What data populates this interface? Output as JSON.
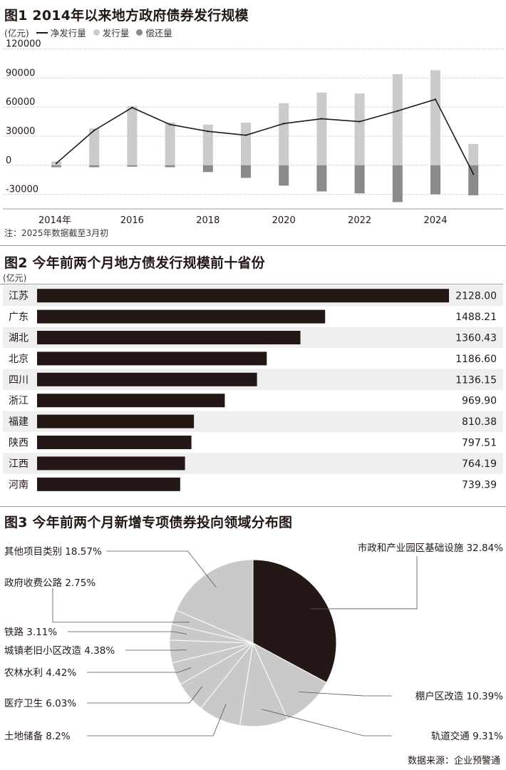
{
  "chart1": {
    "title": "图1 2014年以来地方政府债券发行规模",
    "unit": "(亿元)",
    "legend": {
      "net": "净发行量",
      "issue": "发行量",
      "repay": "偿还量"
    },
    "note": "注：2025年数据截至3月初",
    "colors": {
      "issue": "#cbcbcb",
      "repay": "#8a8a8a",
      "net": "#231815"
    },
    "chart_data": {
      "type": "bar",
      "categories": [
        "2014",
        "2015",
        "2016",
        "2017",
        "2018",
        "2019",
        "2020",
        "2021",
        "2022",
        "2023",
        "2024",
        "2025"
      ],
      "x_tick_labels": [
        "2014年",
        "2016",
        "2018",
        "2020",
        "2022",
        "2024"
      ],
      "y_ticks": [
        "120000",
        "90000",
        "60000",
        "30000",
        "0",
        "-30000"
      ],
      "ylim": [
        -45000,
        130000
      ],
      "grid": true,
      "legend_position": "top-left",
      "series": [
        {
          "name": "发行量",
          "type": "bar",
          "values": [
            4000,
            38000,
            61000,
            44000,
            42000,
            44000,
            64000,
            75000,
            74000,
            94000,
            98000,
            22000
          ]
        },
        {
          "name": "偿还量",
          "type": "bar",
          "values": [
            -2000,
            -2000,
            -1500,
            -2000,
            -7000,
            -13000,
            -21000,
            -27000,
            -29000,
            -38000,
            -30000,
            -31000
          ]
        },
        {
          "name": "净发行量",
          "type": "line",
          "values": [
            2000,
            36000,
            59500,
            42000,
            35000,
            31000,
            43000,
            48000,
            45000,
            56000,
            68000,
            -9000
          ]
        }
      ]
    }
  },
  "chart2": {
    "title": "图2 今年前两个月地方债发行规模前十省份",
    "unit": "(亿元)",
    "colors": {
      "bar": "#231815",
      "stripe": "#efefef"
    },
    "chart_data": {
      "type": "bar",
      "orientation": "horizontal",
      "categories": [
        "江苏",
        "广东",
        "湖北",
        "北京",
        "四川",
        "浙江",
        "福建",
        "陕西",
        "江西",
        "河南"
      ],
      "values": [
        2128.0,
        1488.21,
        1360.43,
        1186.6,
        1136.15,
        969.9,
        810.38,
        797.51,
        764.19,
        739.39
      ],
      "labels": [
        "2128.00",
        "1488.21",
        "1360.43",
        "1186.60",
        "1136.15",
        "969.90",
        "810.38",
        "797.51",
        "764.19",
        "739.39"
      ]
    }
  },
  "chart3": {
    "title": "图3 今年前两个月新增专项债券投向领域分布图",
    "colors": {
      "main": "#231815",
      "rest": "#c9c9c9",
      "edge": "#ffffff",
      "leader": "#555555"
    },
    "chart_data": {
      "type": "pie",
      "start": "12 o'clock",
      "direction": "clockwise",
      "slices": [
        {
          "label": "市政和产业园区基础设施",
          "pct_text": "32.84%",
          "value": 32.84
        },
        {
          "label": "棚户区改造",
          "pct_text": "10.39%",
          "value": 10.39
        },
        {
          "label": "轨道交通",
          "pct_text": "9.31%",
          "value": 9.31
        },
        {
          "label": "土地储备",
          "pct_text": "8.2%",
          "value": 8.2
        },
        {
          "label": "医疗卫生",
          "pct_text": "6.03%",
          "value": 6.03
        },
        {
          "label": "农林水利",
          "pct_text": "4.42%",
          "value": 4.42
        },
        {
          "label": "城镇老旧小区改造",
          "pct_text": "4.38%",
          "value": 4.38
        },
        {
          "label": "铁路",
          "pct_text": "3.11%",
          "value": 3.11
        },
        {
          "label": "政府收费公路",
          "pct_text": "2.75%",
          "value": 2.75
        },
        {
          "label": "其他项目类别",
          "pct_text": "18.57%",
          "value": 18.57
        }
      ]
    }
  },
  "source": "数据来源：企业预警通"
}
